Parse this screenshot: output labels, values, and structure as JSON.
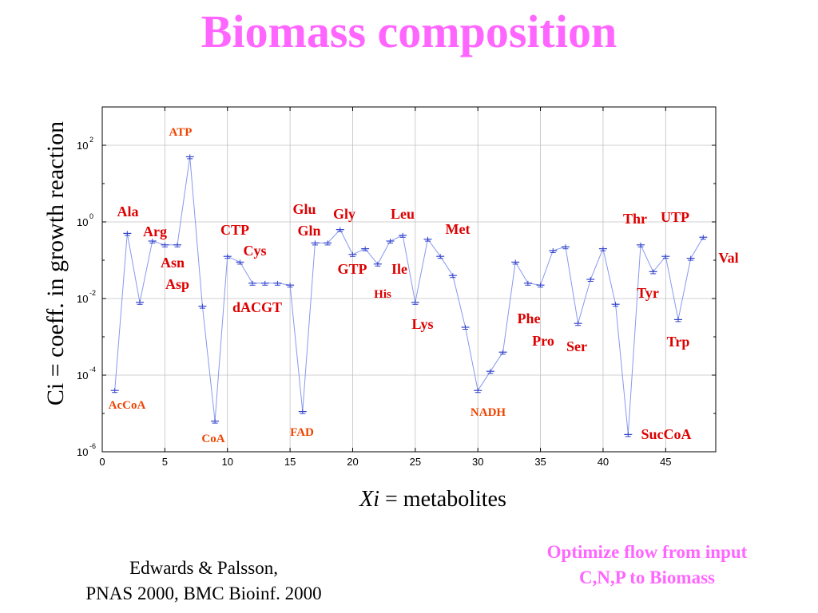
{
  "page": {
    "title": "Biomass composition",
    "ylabel": "Ci = coeff. in growth reaction",
    "xlabel_var": "Xi",
    "xlabel_rest": " = metabolites",
    "citation_line1": "Edwards & Palsson,",
    "citation_line2": "PNAS 2000, BMC Bioinf. 2000",
    "note_line1": "Optimize flow from input",
    "note_line2": "C,N,P  to Biomass"
  },
  "colors": {
    "title": "#ff66ff",
    "series_line": "#8899ee",
    "marker": "#3344cc",
    "label_red": "#dd0000",
    "label_orange": "#ee4400",
    "grid": "#c0c0c0"
  },
  "chart_data": {
    "type": "line",
    "xlim": [
      0,
      49
    ],
    "ylim_log10": [
      -6,
      3
    ],
    "yscale": "log",
    "grid": true,
    "x_ticks": [
      0,
      5,
      10,
      15,
      20,
      25,
      30,
      35,
      40,
      45
    ],
    "y_tick_exponents": [
      -6,
      -4,
      -2,
      0,
      2
    ],
    "y_tick_base": "10",
    "series": [
      {
        "x": [
          1,
          2,
          3,
          4,
          5,
          6,
          7,
          8,
          9,
          10,
          11,
          12,
          13,
          14,
          15,
          16,
          17,
          18,
          19,
          20,
          21,
          22,
          23,
          24,
          25,
          26,
          27,
          28,
          29,
          30,
          31,
          32,
          33,
          34,
          35,
          36,
          37,
          38,
          39,
          40,
          41,
          42,
          43,
          44,
          45,
          46,
          47,
          48
        ],
        "log10_y": [
          -4.4,
          -0.3,
          -2.1,
          -0.5,
          -0.6,
          -0.6,
          1.7,
          -2.2,
          -5.2,
          -0.9,
          -1.05,
          -1.6,
          -1.6,
          -1.6,
          -1.65,
          -4.95,
          -0.55,
          -0.55,
          -0.2,
          -0.85,
          -0.7,
          -1.1,
          -0.5,
          -0.35,
          -2.1,
          -0.45,
          -0.9,
          -1.4,
          -2.75,
          -4.4,
          -3.9,
          -3.4,
          -1.05,
          -1.6,
          -1.65,
          -0.75,
          -0.65,
          -2.65,
          -1.5,
          -0.7,
          -2.15,
          -5.55,
          -0.6,
          -1.3,
          -0.9,
          -2.55,
          -0.95,
          -0.4
        ]
      }
    ],
    "labels": [
      {
        "text": "ATP",
        "color": "orange"
      },
      {
        "text": "Ala",
        "color": "red"
      },
      {
        "text": "Arg",
        "color": "red"
      },
      {
        "text": "Asn",
        "color": "red"
      },
      {
        "text": "Asp",
        "color": "red"
      },
      {
        "text": "AcCoA",
        "color": "orange"
      },
      {
        "text": "CoA",
        "color": "orange"
      },
      {
        "text": "CTP",
        "color": "red"
      },
      {
        "text": "Cys",
        "color": "red"
      },
      {
        "text": "dACGT",
        "color": "red"
      },
      {
        "text": "FAD",
        "color": "orange"
      },
      {
        "text": "Glu",
        "color": "red"
      },
      {
        "text": "Gln",
        "color": "red"
      },
      {
        "text": "Gly",
        "color": "red"
      },
      {
        "text": "GTP",
        "color": "red"
      },
      {
        "text": "His",
        "color": "red"
      },
      {
        "text": "Leu",
        "color": "red"
      },
      {
        "text": "Ile",
        "color": "red"
      },
      {
        "text": "Lys",
        "color": "red"
      },
      {
        "text": "Met",
        "color": "red"
      },
      {
        "text": "NADH",
        "color": "orange"
      },
      {
        "text": "Phe",
        "color": "red"
      },
      {
        "text": "Pro",
        "color": "red"
      },
      {
        "text": "Ser",
        "color": "red"
      },
      {
        "text": "Thr",
        "color": "red"
      },
      {
        "text": "UTP",
        "color": "red"
      },
      {
        "text": "Tyr",
        "color": "red"
      },
      {
        "text": "Trp",
        "color": "red"
      },
      {
        "text": "Val",
        "color": "red"
      },
      {
        "text": "SucCoA",
        "color": "red"
      }
    ]
  }
}
